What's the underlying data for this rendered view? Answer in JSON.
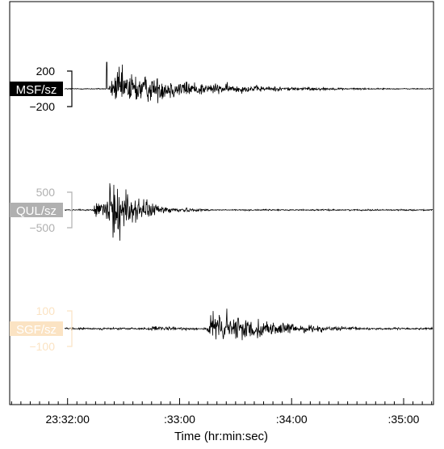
{
  "chart_data": {
    "type": "line",
    "xlabel": "Time (hr:min:sec)",
    "x_range": [
      "23:31:29",
      "23:35:16"
    ],
    "x_ticks": [
      {
        "value": "23:32:00",
        "label": "23:32:00"
      },
      {
        "value": "23:33:00",
        "label": ":33:00"
      },
      {
        "value": "23:34:00",
        "label": ":34:00"
      },
      {
        "value": "23:35:00",
        "label": ":35:00"
      }
    ],
    "grid": false,
    "series": [
      {
        "name": "MSF/sz",
        "label_color": "#000000",
        "label_text_color": "#ffffff",
        "scale_color": "#000000",
        "scale_labels": [
          "200",
          "−200"
        ],
        "scale_values": [
          200,
          -200
        ],
        "amplitude_units_per_half_bracket": 200,
        "noise_level": 6,
        "events": [
          {
            "onset": "23:32:22",
            "peak_amplitude": 250,
            "rise_s": 4,
            "decay_s": 40,
            "spike_at": "23:32:21",
            "spike_amplitude": 300
          }
        ]
      },
      {
        "name": "QUL/sz",
        "label_color": "#b0b0b0",
        "label_text_color": "#ffffff",
        "scale_color": "#b0b0b0",
        "scale_labels": [
          "500",
          "−500"
        ],
        "scale_values": [
          500,
          -500
        ],
        "amplitude_units_per_half_bracket": 500,
        "noise_level": 20,
        "events": [
          {
            "onset": "23:32:12",
            "peak_amplitude": 900,
            "rise_s": 14,
            "decay_s": 14
          }
        ]
      },
      {
        "name": "SGF/sz",
        "label_color": "#fbe3c3",
        "label_text_color": "#ffffff",
        "scale_color": "#fbe3c3",
        "scale_labels": [
          "100",
          "−100"
        ],
        "scale_values": [
          100,
          -100
        ],
        "amplitude_units_per_half_bracket": 100,
        "noise_level": 6,
        "events": [
          {
            "onset": "23:32:40",
            "peak_amplitude": 14,
            "rise_s": 6,
            "decay_s": 30
          },
          {
            "onset": "23:33:14",
            "peak_amplitude": 120,
            "rise_s": 4,
            "decay_s": 30
          }
        ]
      }
    ]
  }
}
